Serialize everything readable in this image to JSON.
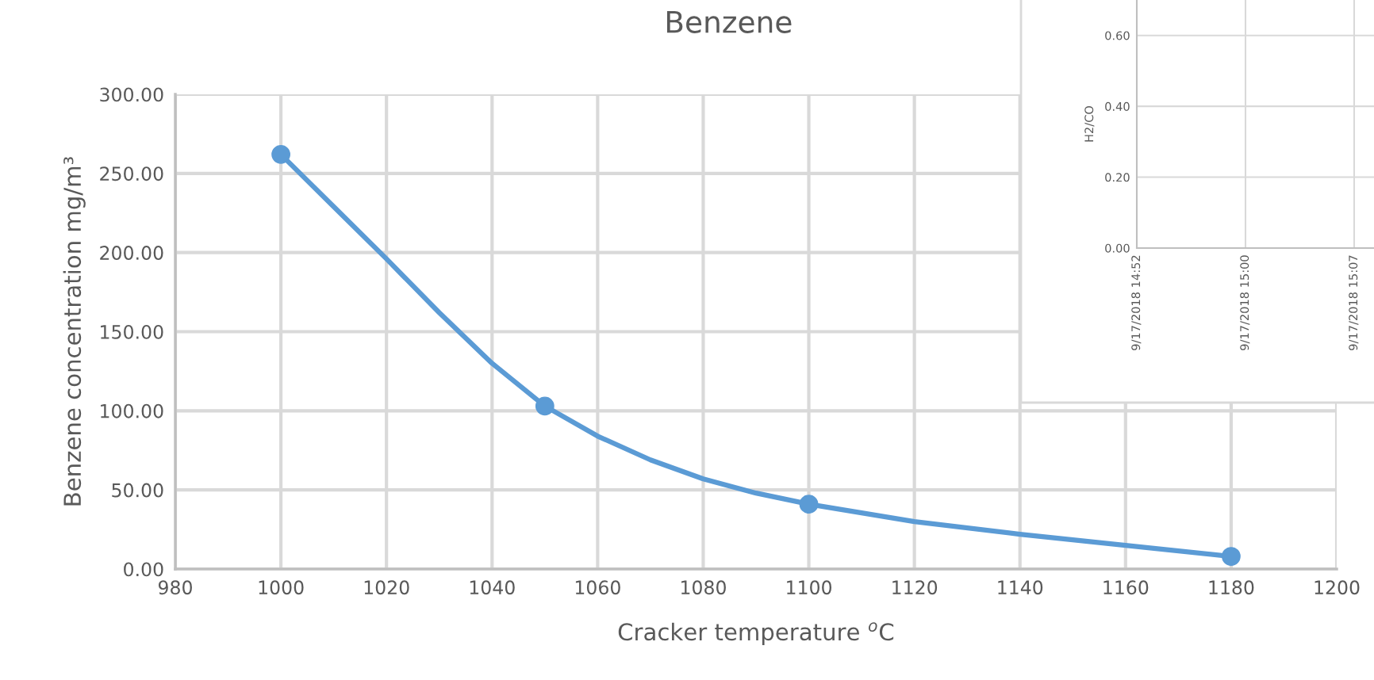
{
  "chart_data": [
    {
      "type": "scatter",
      "title": "Benzene",
      "xlabel": "Cracker temperature $^{o}$C",
      "ylabel": "Benzene concentration mg/m³",
      "x": [
        1000,
        1050,
        1100,
        1180
      ],
      "series": [
        {
          "type": "line",
          "color": "#5b9bd5",
          "x": [
            1000,
            1010,
            1020,
            1030,
            1040,
            1050,
            1060,
            1070,
            1080,
            1090,
            1100,
            1120,
            1140,
            1160,
            1180
          ],
          "values": [
            262,
            229,
            196,
            162,
            130,
            103,
            84,
            69,
            57,
            48,
            41,
            30,
            22,
            15,
            8
          ]
        },
        {
          "color": "#5b9bd5",
          "marker": "circle",
          "values": [
            262,
            103,
            41,
            8
          ]
        }
      ],
      "line_style": "solid",
      "grid": true,
      "xlim": [
        980,
        1200
      ],
      "xticks": [
        980,
        1000,
        1020,
        1040,
        1060,
        1080,
        1100,
        1120,
        1140,
        1160,
        1180,
        1200
      ],
      "ylim": [
        0,
        300
      ],
      "yticks": [
        {
          "value": 0,
          "label": "0.00"
        },
        {
          "value": 50,
          "label": "50.00"
        },
        {
          "value": 100,
          "label": "100.00"
        },
        {
          "value": 150,
          "label": "150.00"
        },
        {
          "value": 200,
          "label": "200.00"
        },
        {
          "value": 250,
          "label": "250.00"
        },
        {
          "value": 300,
          "label": "300.00"
        }
      ]
    },
    {
      "type": "line",
      "ylabel": "H2/CO",
      "categories": [
        "9/17/2018 14:52",
        "9/17/2018 15:00",
        "9/17/2018 15:07"
      ],
      "values": [
        null,
        null,
        null
      ],
      "grid": true,
      "ylim": [
        0,
        0.7
      ],
      "yticks": [
        {
          "value": 0,
          "label": "0.00"
        },
        {
          "value": 0.2,
          "label": "0.20"
        },
        {
          "value": 0.4,
          "label": "0.40"
        },
        {
          "value": 0.6,
          "label": "0.60"
        }
      ]
    }
  ]
}
